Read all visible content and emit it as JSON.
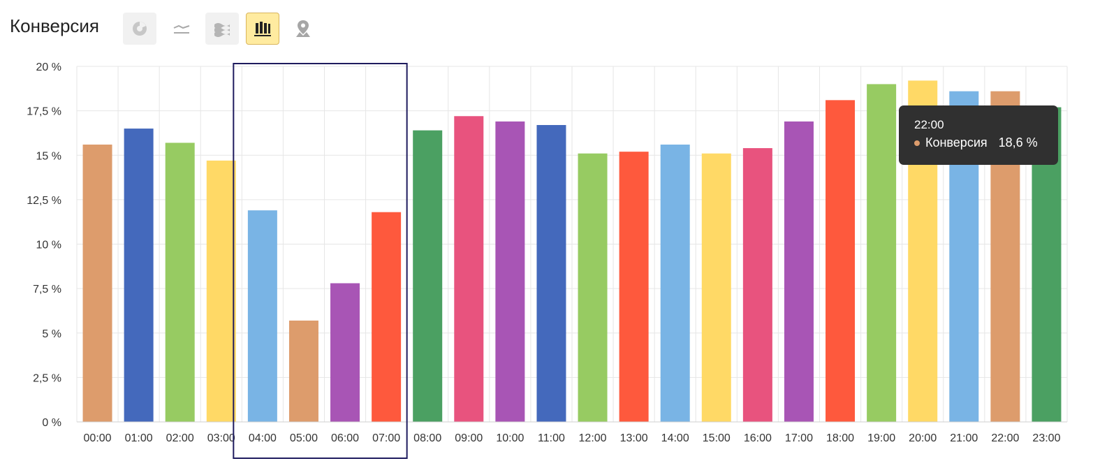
{
  "header": {
    "title": "Конверсия",
    "tools": [
      {
        "icon": "pie-chart-icon",
        "active": false
      },
      {
        "icon": "line-chart-icon",
        "active": false
      },
      {
        "icon": "area-chart-icon",
        "active": false
      },
      {
        "icon": "bar-chart-icon",
        "active": true
      },
      {
        "icon": "map-pin-icon",
        "active": false
      }
    ]
  },
  "chart_data": {
    "type": "bar",
    "categories": [
      "00:00",
      "01:00",
      "02:00",
      "03:00",
      "04:00",
      "05:00",
      "06:00",
      "07:00",
      "08:00",
      "09:00",
      "10:00",
      "11:00",
      "12:00",
      "13:00",
      "14:00",
      "15:00",
      "16:00",
      "17:00",
      "18:00",
      "19:00",
      "20:00",
      "21:00",
      "22:00",
      "23:00"
    ],
    "values": [
      15.6,
      16.5,
      15.7,
      14.7,
      11.9,
      5.7,
      7.8,
      11.8,
      16.4,
      17.2,
      16.9,
      16.7,
      15.1,
      15.2,
      15.6,
      15.1,
      15.4,
      16.9,
      18.1,
      19.0,
      19.2,
      18.6,
      18.6,
      17.7
    ],
    "colors": [
      "#dd9c6c",
      "#4469bc",
      "#97cb62",
      "#ffd966",
      "#79b4e5",
      "#dd9c6c",
      "#a855b5",
      "#fe593d",
      "#4ba062",
      "#e8537e",
      "#a855b5",
      "#4469bc",
      "#97cb62",
      "#fe593d",
      "#79b4e5",
      "#ffd966",
      "#e8537e",
      "#a855b5",
      "#fe593d",
      "#97cb62",
      "#ffd966",
      "#79b4e5",
      "#dd9c6c",
      "#4ba062"
    ],
    "yticks": [
      "0 %",
      "2,5 %",
      "5 %",
      "7,5 %",
      "10 %",
      "12,5 %",
      "15 %",
      "17,5 %",
      "20 %"
    ],
    "ylim": [
      0,
      20
    ],
    "grid": true,
    "highlight": {
      "from": "04:00",
      "to": "07:00",
      "color": "#1e1b5e"
    }
  },
  "tooltip": {
    "time": "22:00",
    "series": "Конверсия",
    "value": "18,6 %",
    "dot_color": "#dd9c6c"
  }
}
